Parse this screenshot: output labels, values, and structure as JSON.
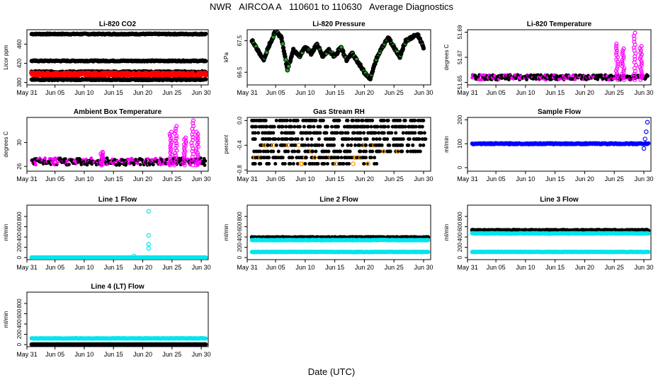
{
  "title": "NWR   AIRCOA A   110601 to 110630   Average Diagnostics",
  "xlabel": "Date (UTC)",
  "date_ticks": [
    "May 31",
    "Jun 05",
    "Jun 10",
    "Jun 15",
    "Jun 20",
    "Jun 25",
    "Jun 30"
  ],
  "colors": {
    "black": "#000000",
    "red": "#ff0000",
    "green": "#22aa22",
    "magenta": "#ff00ff",
    "orange": "#ffa500",
    "blue": "#0000ff",
    "cyan": "#00e5ee"
  },
  "chart_data": [
    {
      "type": "scatter",
      "title": "Li-820 CO2",
      "ylabel": "Licor ppm",
      "ylim": [
        375,
        490
      ],
      "yticks": [
        "380",
        "420",
        "460"
      ],
      "ytick_values": [
        380,
        420,
        460
      ],
      "series": [
        {
          "name": "level 480",
          "color": "black",
          "style": "band",
          "level": 481,
          "noise": 1
        },
        {
          "name": "level 425",
          "color": "black",
          "style": "band",
          "level": 425,
          "noise": 1
        },
        {
          "name": "level 402",
          "color": "black",
          "style": "band",
          "level": 402,
          "noise": 1.5
        },
        {
          "name": "sample",
          "color": "red",
          "style": "band",
          "level": 397,
          "noise": 3,
          "thick": 6
        },
        {
          "name": "level 386",
          "color": "black",
          "style": "band",
          "level": 386,
          "noise": 1
        }
      ]
    },
    {
      "type": "scatter",
      "title": "Li-820 Pressure",
      "ylabel": "kPa",
      "ylim": [
        66.1,
        67.85
      ],
      "yticks": [
        "66.5",
        "67.5"
      ],
      "ytick_values": [
        66.5,
        67.5
      ],
      "series": [
        {
          "name": "pressure",
          "color": "green",
          "style": "path",
          "points": [
            [
              1,
              67.5
            ],
            [
              2,
              67.2
            ],
            [
              3,
              66.9
            ],
            [
              4,
              67.4
            ],
            [
              5,
              67.8
            ],
            [
              6,
              67.6
            ],
            [
              7,
              66.6
            ],
            [
              8,
              67.2
            ],
            [
              9,
              67.0
            ],
            [
              10,
              67.3
            ],
            [
              11,
              67.1
            ],
            [
              12,
              67.4
            ],
            [
              13,
              67.0
            ],
            [
              14,
              67.2
            ],
            [
              15,
              67.0
            ],
            [
              16,
              67.3
            ],
            [
              17,
              66.9
            ],
            [
              18,
              67.1
            ],
            [
              19,
              66.8
            ],
            [
              20,
              66.5
            ],
            [
              21,
              66.3
            ],
            [
              22,
              66.9
            ],
            [
              23,
              67.3
            ],
            [
              24,
              67.6
            ],
            [
              25,
              67.3
            ],
            [
              26,
              67.0
            ],
            [
              27,
              67.5
            ],
            [
              28,
              67.6
            ],
            [
              29,
              67.7
            ],
            [
              30,
              67.3
            ]
          ]
        }
      ]
    },
    {
      "type": "scatter",
      "title": "Li-820 Temperature",
      "ylabel": "degrees C",
      "ylim": [
        51.648,
        51.692
      ],
      "yticks": [
        "51.65",
        "51.67",
        "51.69"
      ],
      "ytick_values": [
        51.65,
        51.67,
        51.69
      ],
      "extra_yticks": [
        "51.67",
        "51.69"
      ],
      "series": [
        {
          "name": "temperature",
          "color": "magenta",
          "style": "spiky",
          "base": 51.652,
          "amp": 0.004,
          "spikes": [
            [
              25.5,
              51.682
            ],
            [
              26.5,
              51.678
            ],
            [
              28.5,
              51.691
            ],
            [
              29.5,
              51.68
            ]
          ]
        }
      ]
    },
    {
      "type": "scatter",
      "title": "Ambient Box Temperature",
      "ylabel": "degrees C",
      "ylim": [
        25.2,
        34.2
      ],
      "yticks": [
        "26",
        "30"
      ],
      "ytick_values": [
        26,
        30
      ],
      "series": [
        {
          "name": "box temp",
          "color": "magenta",
          "style": "spiky",
          "base": 26.2,
          "amp": 1.2,
          "spikes": [
            [
              13,
              28.5
            ],
            [
              24.8,
              32
            ],
            [
              25.6,
              33
            ],
            [
              27.2,
              31
            ],
            [
              28.5,
              34
            ],
            [
              29.3,
              32
            ]
          ]
        }
      ]
    },
    {
      "type": "scatter",
      "title": "Gas Stream RH",
      "ylabel": "percent",
      "ylim": [
        -0.82,
        0.05
      ],
      "yticks": [
        "-0.8",
        "-0.4",
        "0.0"
      ],
      "ytick_values": [
        -0.8,
        -0.4,
        0.0
      ],
      "series": [
        {
          "name": "rh",
          "color": "orange",
          "style": "levels",
          "levels": [
            -0.7,
            -0.6,
            -0.5,
            -0.4,
            -0.3,
            -0.2,
            -0.1,
            0.0
          ],
          "shift_day": 22.5,
          "shift": 0.2
        }
      ]
    },
    {
      "type": "scatter",
      "title": "Sample Flow",
      "ylabel": "ml/min",
      "ylim": [
        -15,
        210
      ],
      "yticks": [
        "0",
        "100",
        "200"
      ],
      "ytick_values": [
        0,
        100,
        200
      ],
      "series": [
        {
          "name": "sample flow",
          "color": "blue",
          "style": "band",
          "level": 100,
          "noise": 2,
          "end_rise": [
            [
              30,
              80
            ],
            [
              30.2,
              120
            ],
            [
              30.4,
              150
            ],
            [
              30.6,
              190
            ]
          ]
        }
      ]
    },
    {
      "type": "scatter",
      "title": "Line 1 Flow",
      "ylabel": "ml/min",
      "ylim": [
        -40,
        1020
      ],
      "yticks": [
        "0",
        "200",
        "400",
        "600",
        "800"
      ],
      "ytick_values": [
        0,
        200,
        400,
        600,
        800
      ],
      "series": [
        {
          "name": "line1",
          "color": "cyan",
          "style": "band",
          "level": 3,
          "noise": 1,
          "outliers": [
            [
              21,
              900
            ],
            [
              21,
              430
            ],
            [
              21,
              260
            ],
            [
              21,
              180
            ],
            [
              18.5,
              30
            ]
          ]
        }
      ]
    },
    {
      "type": "scatter",
      "title": "Line 2 Flow",
      "ylabel": "ml/min",
      "ylim": [
        -40,
        1020
      ],
      "yticks": [
        "0",
        "200",
        "400",
        "600",
        "800"
      ],
      "ytick_values": [
        0,
        200,
        400,
        600,
        800
      ],
      "series": [
        {
          "name": "line2 black",
          "color": "black",
          "style": "band",
          "level": 390,
          "noise": 8
        },
        {
          "name": "line2 cyan upper",
          "color": "cyan",
          "style": "band",
          "level": 340,
          "noise": 5
        },
        {
          "name": "line2 cyan lower",
          "color": "cyan",
          "style": "band",
          "level": 110,
          "noise": 4
        }
      ]
    },
    {
      "type": "scatter",
      "title": "Line 3 Flow",
      "ylabel": "ml/min",
      "ylim": [
        -40,
        1020
      ],
      "yticks": [
        "0",
        "200",
        "400",
        "600",
        "800"
      ],
      "ytick_values": [
        0,
        200,
        400,
        600,
        800
      ],
      "series": [
        {
          "name": "line3 black",
          "color": "black",
          "style": "band",
          "level": 530,
          "noise": 8
        },
        {
          "name": "line3 cyan upper",
          "color": "cyan",
          "style": "band",
          "level": 470,
          "noise": 6
        },
        {
          "name": "line3 cyan lower",
          "color": "cyan",
          "style": "band",
          "level": 110,
          "noise": 4
        }
      ]
    },
    {
      "type": "scatter",
      "title": "Line 4 (LT) Flow",
      "ylabel": "ml/min",
      "ylim": [
        -40,
        1020
      ],
      "yticks": [
        "0",
        "200",
        "400",
        "600",
        "800"
      ],
      "ytick_values": [
        0,
        200,
        400,
        600,
        800
      ],
      "series": [
        {
          "name": "line4 cyan",
          "color": "cyan",
          "style": "band",
          "level": 120,
          "noise": 4
        },
        {
          "name": "line4 black",
          "color": "black",
          "style": "band",
          "level": 3,
          "noise": 1
        }
      ]
    }
  ]
}
